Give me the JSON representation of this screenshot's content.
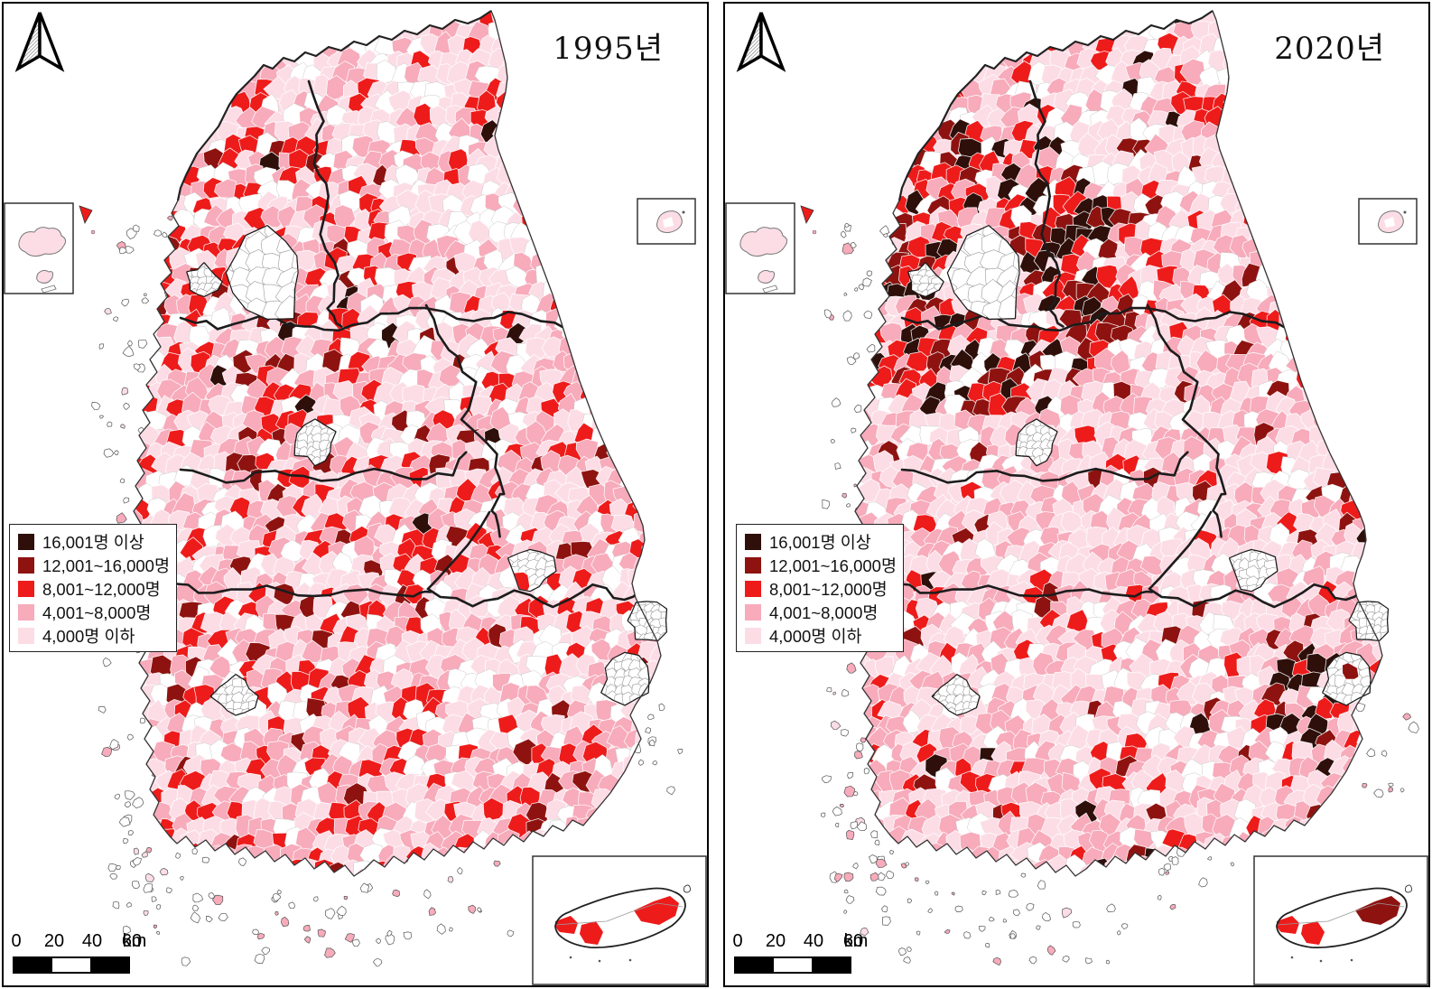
{
  "panels": [
    {
      "title": "1995년"
    },
    {
      "title": "2020년"
    }
  ],
  "legend": {
    "items": [
      {
        "label": "16,001명 이상",
        "color": "#2e0f0a"
      },
      {
        "label": "12,001~16,000명",
        "color": "#8e1310"
      },
      {
        "label": "8,001~12,000명",
        "color": "#ee1b1b"
      },
      {
        "label": "4,001~8,000명",
        "color": "#f7abbb"
      },
      {
        "label": "4,000명 이하",
        "color": "#fcdde6"
      }
    ]
  },
  "scalebar": {
    "ticks": [
      "0",
      "20",
      "40",
      "60"
    ],
    "unit": "km"
  },
  "map_colors": {
    "white_region": "#ffffff",
    "sea": "#ffffff",
    "cell_border": "#cccccc",
    "province_border": "#1c1c1c",
    "coastline": "#333333",
    "metro_inner_border": "#999999",
    "island_stroke": "#555555"
  }
}
